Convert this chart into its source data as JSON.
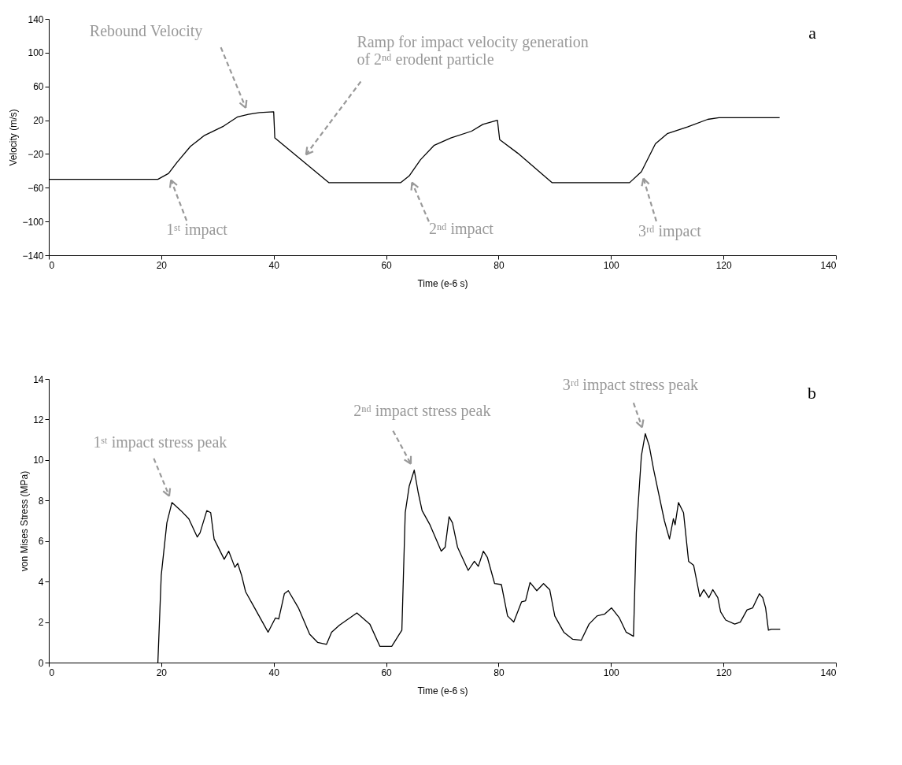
{
  "chart_data": [
    {
      "type": "line",
      "xlabel": "Time (e-6 s)",
      "ylabel": "Velocity (m/s)",
      "xlim": [
        0,
        140
      ],
      "ylim": [
        -140,
        140
      ],
      "xticks": [
        0,
        20,
        40,
        60,
        80,
        100,
        120,
        140
      ],
      "yticks": [
        -140,
        -100,
        -60,
        -20,
        20,
        60,
        100,
        140
      ],
      "line_style": "solid",
      "x": [
        0,
        19.4,
        21.3,
        22.8,
        25.2,
        27.7,
        31.1,
        33.6,
        35.5,
        37.5,
        40,
        40.2,
        49.8,
        62.6,
        64.1,
        66.1,
        68.5,
        71.5,
        75.2,
        77.2,
        79.3,
        79.8,
        80.2,
        83.4,
        89.5,
        103.3,
        105.4,
        107.9,
        110,
        113.6,
        117.2,
        119.2,
        130
      ],
      "series": [
        {
          "color": "#000000",
          "values": [
            -50,
            -50,
            -43,
            -30,
            -11,
            2,
            13,
            24,
            27,
            29,
            30,
            -1,
            -54,
            -54,
            -46,
            -27,
            -10,
            -1,
            7,
            15,
            19,
            20,
            -3,
            -19,
            -54,
            -54,
            -41,
            -8,
            4,
            12,
            21,
            23,
            23
          ]
        }
      ],
      "annotations": [
        "Rebound Velocity",
        "Ramp for impact velocity generation\nof 2ⁿᵈ erodent particle",
        "1ˢᵗ impact",
        "2ⁿᵈ impact",
        "3ʳᵈ impact",
        "a"
      ]
    },
    {
      "type": "line",
      "xlabel": "Time (e-6 s)",
      "ylabel": "von Mises Stress (MPa)",
      "xlim": [
        0,
        140
      ],
      "ylim": [
        0,
        14
      ],
      "xticks": [
        0,
        20,
        40,
        60,
        80,
        100,
        120,
        140
      ],
      "yticks": [
        0,
        2,
        4,
        6,
        8,
        10,
        12,
        14
      ],
      "line_style": "solid",
      "x": [
        19.4,
        20.0,
        21.0,
        21.9,
        23.5,
        24.9,
        26.4,
        26.9,
        28.1,
        28.8,
        29.4,
        31.2,
        32.0,
        33.1,
        33.6,
        34.3,
        35.0,
        36.2,
        39.0,
        40.3,
        40.9,
        41.9,
        42.6,
        44.4,
        46.4,
        47.8,
        49.4,
        50.3,
        51.7,
        53.5,
        54.8,
        57.1,
        58.9,
        61.0,
        62.8,
        63.4,
        64.1,
        65.0,
        65.7,
        66.4,
        67.8,
        69.8,
        70.5,
        71.2,
        71.8,
        72.7,
        74.6,
        75.7,
        76.4,
        77.3,
        78.0,
        79.3,
        80.5,
        81.6,
        82.7,
        84.1,
        84.8,
        85.6,
        86.8,
        88.0,
        89.1,
        90.0,
        91.6,
        93.2,
        94.7,
        96.1,
        97.5,
        98.9,
        100.1,
        101.5,
        102.7,
        104.0,
        104.5,
        105.4,
        106.1,
        106.8,
        107.6,
        109.5,
        110.4,
        111.1,
        111.4,
        112.0,
        112.9,
        113.8,
        114.7,
        115.8,
        116.5,
        117.4,
        118.1,
        119.0,
        119.5,
        120.4,
        122.0,
        123.0,
        124.2,
        125.2,
        126.4,
        127.0,
        127.5,
        128.0,
        128.5,
        130.1
      ],
      "series": [
        {
          "color": "#000000",
          "values": [
            0,
            4.3,
            6.9,
            7.9,
            7.5,
            7.1,
            6.2,
            6.4,
            7.5,
            7.4,
            6.1,
            5.1,
            5.5,
            4.7,
            4.9,
            4.3,
            3.5,
            2.9,
            1.5,
            2.2,
            2.15,
            3.4,
            3.55,
            2.7,
            1.4,
            1.0,
            0.9,
            1.5,
            1.85,
            2.2,
            2.45,
            1.9,
            0.8,
            0.8,
            1.6,
            7.4,
            8.7,
            9.5,
            8.4,
            7.5,
            6.8,
            5.5,
            5.7,
            7.2,
            6.9,
            5.7,
            4.55,
            5.0,
            4.75,
            5.5,
            5.2,
            3.9,
            3.85,
            2.3,
            2.0,
            3.0,
            3.05,
            3.95,
            3.55,
            3.9,
            3.6,
            2.3,
            1.5,
            1.15,
            1.1,
            1.9,
            2.3,
            2.4,
            2.7,
            2.2,
            1.5,
            1.3,
            6.4,
            10.2,
            11.3,
            10.7,
            9.5,
            7.0,
            6.1,
            7.1,
            6.8,
            7.9,
            7.4,
            5.0,
            4.8,
            3.25,
            3.6,
            3.2,
            3.6,
            3.2,
            2.5,
            2.1,
            1.9,
            2.0,
            2.6,
            2.7,
            3.4,
            3.2,
            2.7,
            1.6,
            1.65,
            1.65
          ]
        }
      ],
      "annotations": [
        "1ˢᵗ impact stress peak",
        "2ⁿᵈ impact stress peak",
        "3ʳᵈ impact stress peak",
        "b"
      ]
    }
  ]
}
